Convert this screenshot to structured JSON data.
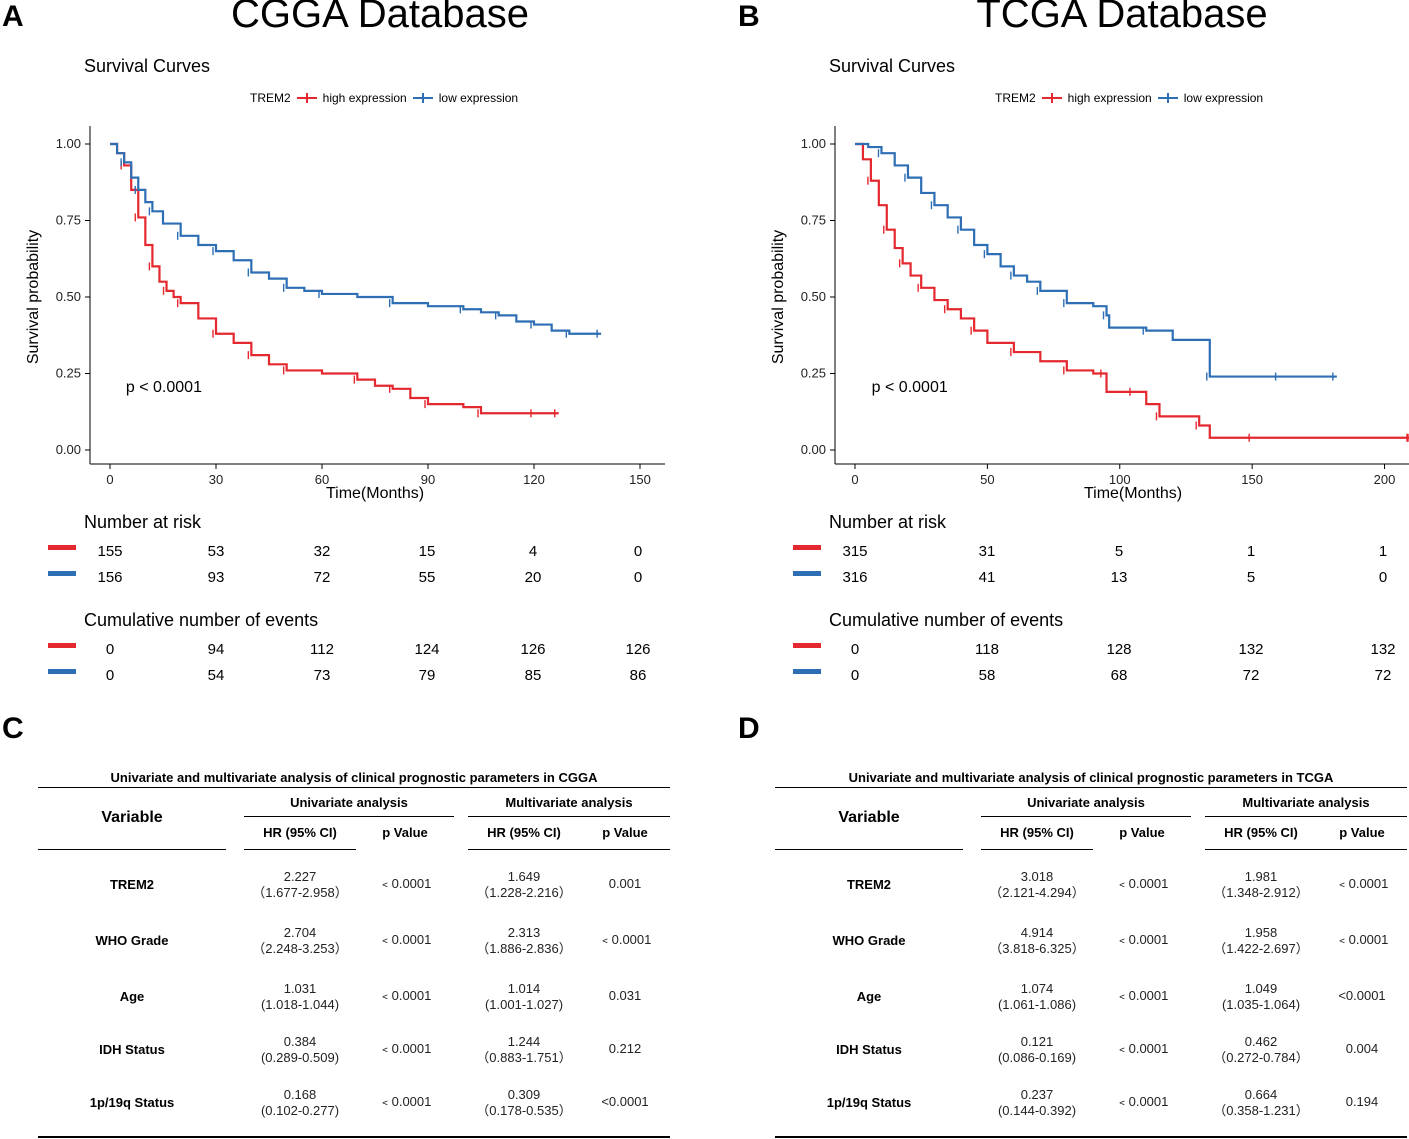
{
  "panels": {
    "A": {
      "letter": "A",
      "title": "CGGA Database"
    },
    "B": {
      "letter": "B",
      "title": "TCGA Database"
    },
    "C": {
      "letter": "C"
    },
    "D": {
      "letter": "D"
    }
  },
  "colors": {
    "high": "#e4282f",
    "low": "#2d6eb5"
  },
  "legend": {
    "title": "TREM2",
    "high": "high expression",
    "low": "low expression"
  },
  "chart_data": [
    {
      "id": "cgga",
      "type": "line",
      "title": "Survival Curves",
      "xlabel": "Time(Months)",
      "ylabel": "Survival probability",
      "xlim": [
        0,
        150
      ],
      "ylim": [
        0,
        1
      ],
      "xticks": [
        0,
        30,
        60,
        90,
        120,
        150
      ],
      "yticks": [
        "0.00",
        "0.25",
        "0.50",
        "0.75",
        "1.00"
      ],
      "annotation": "p < 0.0001",
      "series": [
        {
          "name": "high expression",
          "x": [
            0,
            2,
            4,
            6,
            8,
            10,
            12,
            14,
            16,
            18,
            20,
            25,
            30,
            35,
            40,
            45,
            50,
            60,
            70,
            75,
            80,
            85,
            90,
            100,
            105,
            110,
            120,
            127
          ],
          "y": [
            1.0,
            0.97,
            0.93,
            0.85,
            0.76,
            0.67,
            0.6,
            0.55,
            0.52,
            0.5,
            0.48,
            0.43,
            0.38,
            0.35,
            0.31,
            0.28,
            0.26,
            0.25,
            0.23,
            0.21,
            0.2,
            0.17,
            0.15,
            0.14,
            0.12,
            0.12,
            0.12,
            0.12
          ]
        },
        {
          "name": "low expression",
          "x": [
            0,
            2,
            4,
            6,
            8,
            10,
            12,
            15,
            20,
            25,
            30,
            35,
            40,
            45,
            50,
            55,
            60,
            70,
            80,
            90,
            100,
            105,
            110,
            115,
            120,
            125,
            130,
            139
          ],
          "y": [
            1.0,
            0.97,
            0.94,
            0.89,
            0.85,
            0.81,
            0.78,
            0.74,
            0.7,
            0.67,
            0.65,
            0.62,
            0.58,
            0.56,
            0.53,
            0.52,
            0.51,
            0.5,
            0.48,
            0.47,
            0.46,
            0.45,
            0.44,
            0.42,
            0.41,
            0.39,
            0.38,
            0.38
          ]
        }
      ]
    },
    {
      "id": "tcga",
      "type": "line",
      "title": "Survival Curves",
      "xlabel": "Time(Months)",
      "ylabel": "Survival probability",
      "xlim": [
        0,
        210
      ],
      "ylim": [
        0,
        1
      ],
      "xticks": [
        0,
        50,
        100,
        150,
        200
      ],
      "yticks": [
        "0.00",
        "0.25",
        "0.50",
        "0.75",
        "1.00"
      ],
      "annotation": "p < 0.0001",
      "series": [
        {
          "name": "high expression",
          "x": [
            0,
            3,
            6,
            9,
            12,
            15,
            18,
            21,
            25,
            30,
            35,
            40,
            45,
            50,
            60,
            70,
            80,
            90,
            94,
            95,
            105,
            110,
            115,
            125,
            130,
            134,
            150,
            200,
            210
          ],
          "y": [
            1.0,
            0.95,
            0.88,
            0.8,
            0.72,
            0.66,
            0.61,
            0.57,
            0.53,
            0.49,
            0.46,
            0.43,
            0.39,
            0.35,
            0.32,
            0.29,
            0.26,
            0.25,
            0.25,
            0.19,
            0.19,
            0.15,
            0.11,
            0.11,
            0.08,
            0.04,
            0.04,
            0.04,
            0.04
          ]
        },
        {
          "name": "low expression",
          "x": [
            0,
            5,
            10,
            15,
            20,
            25,
            30,
            35,
            40,
            45,
            50,
            55,
            60,
            65,
            70,
            75,
            80,
            90,
            95,
            96,
            110,
            120,
            134,
            140,
            160,
            182
          ],
          "y": [
            1.0,
            0.99,
            0.97,
            0.93,
            0.89,
            0.84,
            0.8,
            0.76,
            0.72,
            0.67,
            0.64,
            0.6,
            0.57,
            0.55,
            0.52,
            0.52,
            0.48,
            0.47,
            0.44,
            0.4,
            0.39,
            0.36,
            0.24,
            0.24,
            0.24,
            0.24
          ]
        }
      ]
    }
  ],
  "risk": {
    "number_at_risk_title": "Number at risk",
    "cumulative_events_title": "Cumulative number of events",
    "cgga": {
      "at_risk": {
        "high": [
          "155",
          "53",
          "32",
          "15",
          "4",
          "0"
        ],
        "low": [
          "156",
          "93",
          "72",
          "55",
          "20",
          "0"
        ]
      },
      "events": {
        "high": [
          "0",
          "94",
          "112",
          "124",
          "126",
          "126"
        ],
        "low": [
          "0",
          "54",
          "73",
          "79",
          "85",
          "86"
        ]
      }
    },
    "tcga": {
      "at_risk": {
        "high": [
          "315",
          "31",
          "5",
          "1",
          "1"
        ],
        "low": [
          "316",
          "41",
          "13",
          "5",
          "0"
        ]
      },
      "events": {
        "high": [
          "0",
          "118",
          "128",
          "132",
          "132"
        ],
        "low": [
          "0",
          "58",
          "68",
          "72",
          "72"
        ]
      }
    }
  },
  "tables": {
    "headers": {
      "variable": "Variable",
      "univariate": "Univariate analysis",
      "multivariate": "Multivariate analysis",
      "hr": "HR (95% CI)",
      "p": "p Value"
    },
    "cgga": {
      "title": "Univariate and multivariate analysis of clinical prognostic parameters in CGGA",
      "rows": [
        {
          "variable": "TREM2",
          "uni_hr": "2.227",
          "uni_ci": "（1.677-2.958）",
          "uni_p": "﹤0.0001",
          "multi_hr": "1.649",
          "multi_ci": "（1.228-2.216）",
          "multi_p": "0.001"
        },
        {
          "variable": "WHO Grade",
          "uni_hr": "2.704",
          "uni_ci": "（2.248-3.253）",
          "uni_p": "﹤0.0001",
          "multi_hr": "2.313",
          "multi_ci": "（1.886-2.836）",
          "multi_p": "﹤0.0001"
        },
        {
          "variable": "Age",
          "uni_hr": "1.031",
          "uni_ci": "(1.018-1.044)",
          "uni_p": "﹤0.0001",
          "multi_hr": "1.014",
          "multi_ci": "(1.001-1.027)",
          "multi_p": "0.031"
        },
        {
          "variable": "IDH Status",
          "uni_hr": "0.384",
          "uni_ci": "(0.289-0.509)",
          "uni_p": "﹤0.0001",
          "multi_hr": "1.244",
          "multi_ci": "（0.883-1.751）",
          "multi_p": "0.212"
        },
        {
          "variable": "1p/19q Status",
          "uni_hr": "0.168",
          "uni_ci": "(0.102-0.277)",
          "uni_p": "﹤0.0001",
          "multi_hr": "0.309",
          "multi_ci": "（0.178-0.535）",
          "multi_p": "<0.0001"
        }
      ]
    },
    "tcga": {
      "title": "Univariate and multivariate analysis of clinical prognostic parameters in TCGA",
      "rows": [
        {
          "variable": "TREM2",
          "uni_hr": "3.018",
          "uni_ci": "（2.121-4.294）",
          "uni_p": "﹤0.0001",
          "multi_hr": "1.981",
          "multi_ci": "（1.348-2.912）",
          "multi_p": "﹤0.0001"
        },
        {
          "variable": "WHO Grade",
          "uni_hr": "4.914",
          "uni_ci": "（3.818-6.325）",
          "uni_p": "﹤0.0001",
          "multi_hr": "1.958",
          "multi_ci": "（1.422-2.697）",
          "multi_p": "﹤0.0001"
        },
        {
          "variable": "Age",
          "uni_hr": "1.074",
          "uni_ci": "(1.061-1.086)",
          "uni_p": "﹤0.0001",
          "multi_hr": "1.049",
          "multi_ci": "(1.035-1.064)",
          "multi_p": "<0.0001"
        },
        {
          "variable": "IDH Status",
          "uni_hr": "0.121",
          "uni_ci": "(0.086-0.169)",
          "uni_p": "﹤0.0001",
          "multi_hr": "0.462",
          "multi_ci": "（0.272-0.784）",
          "multi_p": "0.004"
        },
        {
          "variable": "1p/19q Status",
          "uni_hr": "0.237",
          "uni_ci": "(0.144-0.392)",
          "uni_p": "﹤0.0001",
          "multi_hr": "0.664",
          "multi_ci": "（0.358-1.231）",
          "multi_p": "0.194"
        }
      ]
    }
  }
}
